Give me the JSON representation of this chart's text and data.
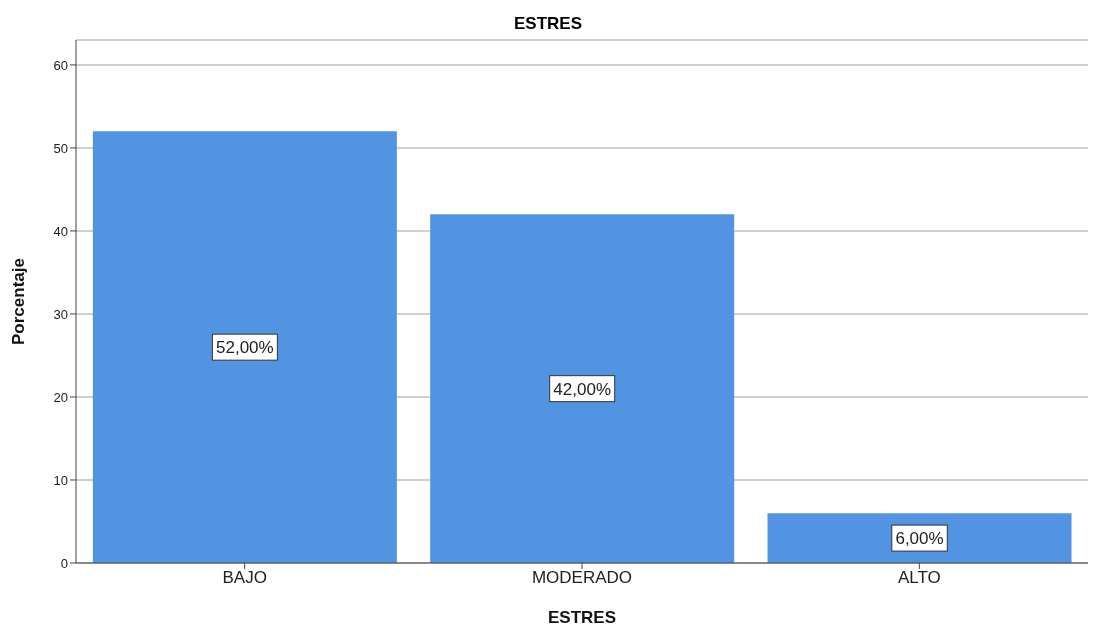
{
  "chart_data": {
    "type": "bar",
    "title": "ESTRES",
    "xlabel": "ESTRES",
    "ylabel": "Porcentaje",
    "categories": [
      "BAJO",
      "MODERADO",
      "ALTO"
    ],
    "values": [
      52,
      42,
      6
    ],
    "value_labels": [
      "52,00%",
      "42,00%",
      "6,00%"
    ],
    "color": "#5294e2",
    "ylim": [
      0,
      63
    ],
    "yticks": [
      0,
      10,
      20,
      30,
      40,
      50,
      60
    ],
    "grid": "y"
  }
}
